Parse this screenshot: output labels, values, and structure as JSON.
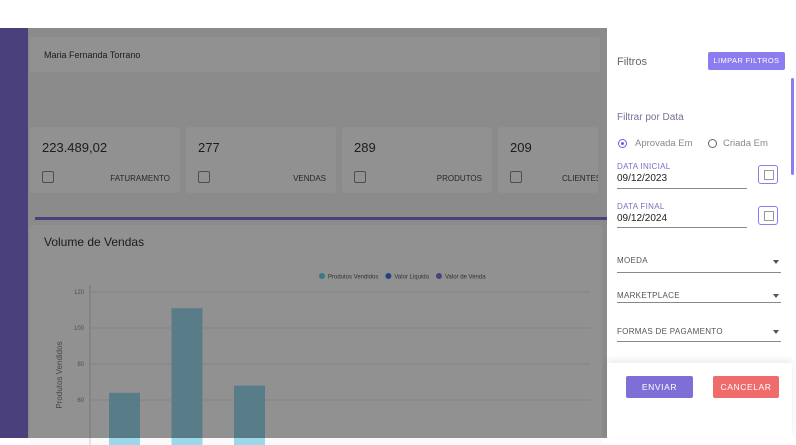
{
  "header": {
    "user": "Maria Fernanda Torrano"
  },
  "stats": [
    {
      "value": "223.489,02",
      "label": "FATURAMENTO"
    },
    {
      "value": "277",
      "label": "VENDAS"
    },
    {
      "value": "289",
      "label": "PRODUTOS"
    },
    {
      "value": "209",
      "label": "CLIENTES"
    }
  ],
  "chart": {
    "title": "Volume de Vendas",
    "legend": [
      "Produtos Vendidos",
      "Valor Liquido",
      "Valor de Venda"
    ],
    "y_label": "Produtos Vendidos",
    "yticks": [
      60,
      80,
      100,
      120
    ],
    "values": [
      64,
      111,
      68
    ]
  },
  "filters": {
    "title": "Filtros",
    "clear": "LIMPAR FILTROS",
    "date_section": "Filtrar por Data",
    "radio_approved": "Aprovada Em",
    "radio_created": "Criada Em",
    "start_label": "DATA INICIAL",
    "start_value": "09/12/2023",
    "end_label": "DATA FINAL",
    "end_value": "09/12/2024",
    "currency": "MOEDA",
    "marketplace": "MARKETPLACE",
    "payment": "FORMAS DE PAGAMENTO",
    "submit": "ENVIAR",
    "cancel": "CANCELAR"
  }
}
